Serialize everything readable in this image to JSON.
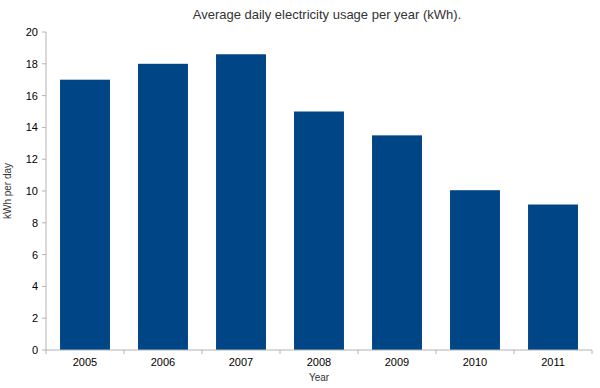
{
  "chart_data": {
    "type": "bar",
    "title": "Average daily electricity usage per year (kWh).",
    "x_label": "Year",
    "y_label": "kWh per day",
    "categories": [
      "2005",
      "2006",
      "2007",
      "2008",
      "2009",
      "2010",
      "2011"
    ],
    "values": [
      17,
      18,
      18.6,
      15,
      13.5,
      10.05,
      9.15
    ],
    "color": "#004586",
    "ylim": [
      0,
      20
    ],
    "yticks": [
      0,
      2,
      4,
      6,
      8,
      10,
      12,
      14,
      16,
      18,
      20
    ],
    "grid": false
  }
}
